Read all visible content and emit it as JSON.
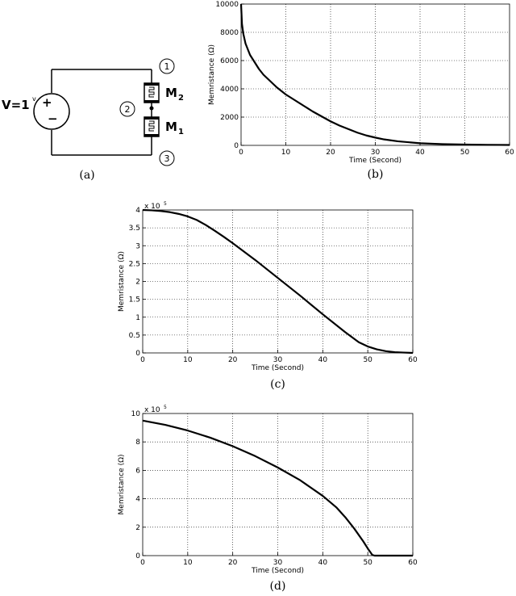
{
  "circuit": {
    "source_label": "V=1",
    "source_unit": "v",
    "plus": "+",
    "minus": "−",
    "m2_label": "M",
    "m2_sub": "2",
    "m1_label": "M",
    "m1_sub": "1",
    "nodes": [
      "1",
      "2",
      "3"
    ],
    "caption": "(a)"
  },
  "chart_data": [
    {
      "id": "b",
      "type": "line",
      "caption": "(b)",
      "xlabel": "Time (Second)",
      "ylabel": "Memristance (Ω)",
      "exponent": "",
      "xlim": [
        0,
        60
      ],
      "ylim": [
        0,
        10000
      ],
      "xticks": [
        "0",
        "10",
        "20",
        "30",
        "40",
        "50",
        "60"
      ],
      "yticks": [
        "0",
        "2000",
        "4000",
        "6000",
        "8000",
        "10000"
      ],
      "grid": true,
      "series": [
        {
          "x": [
            0,
            0.2,
            0.5,
            1,
            2,
            3,
            4,
            5,
            6,
            8,
            10,
            12,
            14,
            16,
            18,
            20,
            22,
            24,
            26,
            28,
            30,
            32,
            35,
            40,
            45,
            50,
            55,
            60
          ],
          "y": [
            10000,
            8600,
            7900,
            7200,
            6400,
            5900,
            5400,
            5000,
            4700,
            4100,
            3600,
            3200,
            2800,
            2400,
            2050,
            1700,
            1400,
            1150,
            900,
            700,
            550,
            420,
            290,
            150,
            90,
            60,
            40,
            30
          ]
        }
      ]
    },
    {
      "id": "c",
      "type": "line",
      "caption": "(c)",
      "xlabel": "Time (Second)",
      "ylabel": "Memristance (Ω)",
      "exponent": "x 10",
      "exponent_power": "5",
      "xlim": [
        0,
        60
      ],
      "ylim": [
        0,
        4
      ],
      "xticks": [
        "0",
        "10",
        "20",
        "30",
        "40",
        "50",
        "60"
      ],
      "yticks": [
        "0",
        "0.5",
        "1",
        "1.5",
        "2",
        "2.5",
        "3",
        "3.5",
        "4"
      ],
      "grid": true,
      "series": [
        {
          "x": [
            0,
            2,
            4,
            6,
            8,
            10,
            12,
            14,
            16,
            18,
            20,
            25,
            30,
            35,
            40,
            45,
            48,
            50,
            52,
            54,
            56,
            58,
            60
          ],
          "y": [
            4.0,
            3.99,
            3.97,
            3.94,
            3.89,
            3.82,
            3.72,
            3.58,
            3.42,
            3.25,
            3.07,
            2.6,
            2.1,
            1.6,
            1.08,
            0.58,
            0.3,
            0.18,
            0.1,
            0.05,
            0.02,
            0.01,
            0.0
          ]
        }
      ]
    },
    {
      "id": "d",
      "type": "line",
      "caption": "(d)",
      "xlabel": "Time (Second)",
      "ylabel": "Memristance (Ω)",
      "exponent": "x 10",
      "exponent_power": "5",
      "xlim": [
        0,
        60
      ],
      "ylim": [
        0,
        10
      ],
      "xticks": [
        "0",
        "10",
        "20",
        "30",
        "40",
        "50",
        "60"
      ],
      "yticks": [
        "0",
        "2",
        "4",
        "6",
        "8",
        "10"
      ],
      "grid": true,
      "series": [
        {
          "x": [
            0,
            5,
            10,
            15,
            20,
            25,
            30,
            35,
            40,
            43,
            45,
            47,
            49,
            50,
            51,
            51.5,
            55,
            60
          ],
          "y": [
            9.5,
            9.2,
            8.8,
            8.3,
            7.7,
            7.0,
            6.2,
            5.3,
            4.2,
            3.4,
            2.7,
            1.9,
            1.0,
            0.5,
            0.05,
            0,
            0,
            0
          ]
        }
      ]
    }
  ]
}
